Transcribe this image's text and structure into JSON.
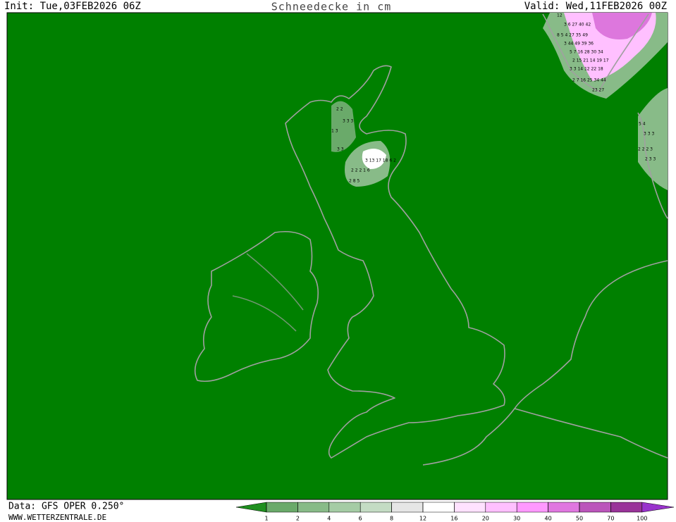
{
  "header": {
    "init": "Init: Tue,03FEB2026 06Z",
    "title": "Schneedecke in cm",
    "valid": "Valid: Wed,11FEB2026 00Z"
  },
  "footer": {
    "source": "Data: GFS OPER 0.250°",
    "website": "WWW.WETTERZENTRALE.DE"
  },
  "map": {
    "labels": [
      "2 2",
      "3 3 3",
      "1 3",
      "3 3",
      "3 13 17 18 6 2",
      "2 2 2 1 6",
      "2 8 5",
      "12",
      "3 6 27 40 42",
      "8 5 4 27 35 49",
      "3 44 49 39 36",
      "5 7 16 28 30 34",
      "2 15 21 14 19 17",
      "3 3 14 12 22 18",
      "2 7 16 25 34 44",
      "23 27",
      "5 4",
      "3 3 3",
      "2 2 2 3",
      "2 3 3"
    ]
  },
  "legend": {
    "ticks": [
      1,
      2,
      4,
      6,
      8,
      12,
      16,
      20,
      30,
      40,
      50,
      70,
      100
    ],
    "colors": [
      "#1f8f1f",
      "#6aaa6a",
      "#88bb88",
      "#a5cca5",
      "#c4dcc4",
      "#e6e6e6",
      "#ffffff",
      "#ffe2ff",
      "#ffc0ff",
      "#ff99ff",
      "#e077e0",
      "#bb55bb",
      "#993399",
      "#9933cc"
    ]
  }
}
